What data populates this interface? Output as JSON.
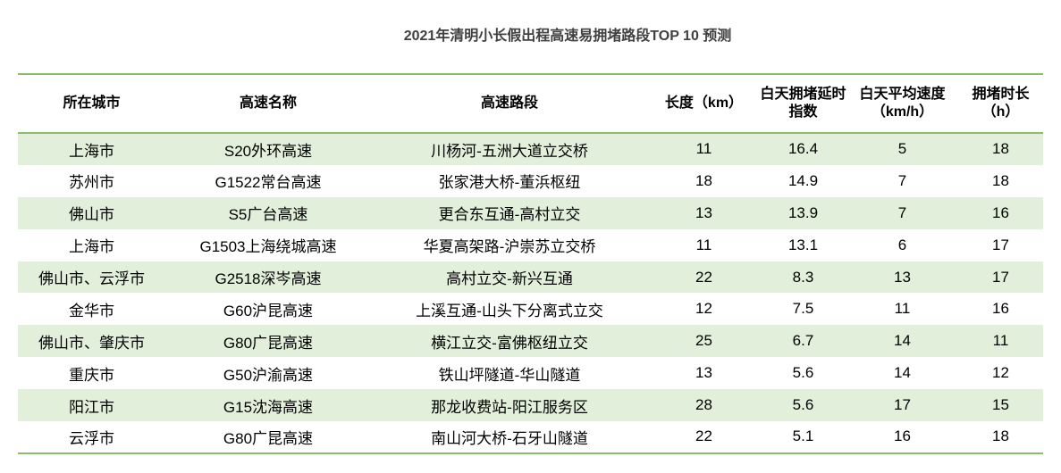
{
  "title": "2021年清明小长假出程高速易拥堵路段TOP 10 预测",
  "colors": {
    "accent_line": "#8cbd6c",
    "stripe": "#e2efda"
  },
  "table": {
    "headers": [
      "所在城市",
      "高速名称",
      "高速路段",
      "长度（km）",
      "白天拥堵延时指数",
      "白天平均速度（km/h）",
      "拥堵时长（h）"
    ],
    "rows": [
      [
        "上海市",
        "S20外环高速",
        "川杨河-五洲大道立交桥",
        "11",
        "16.4",
        "5",
        "18"
      ],
      [
        "苏州市",
        "G1522常台高速",
        "张家港大桥-董浜枢纽",
        "18",
        "14.9",
        "7",
        "18"
      ],
      [
        "佛山市",
        "S5广台高速",
        "更合东互通-高村立交",
        "13",
        "13.9",
        "7",
        "16"
      ],
      [
        "上海市",
        "G1503上海绕城高速",
        "华夏高架路-沪崇苏立交桥",
        "11",
        "13.1",
        "6",
        "17"
      ],
      [
        "佛山市、云浮市",
        "G2518深岑高速",
        "高村立交-新兴互通",
        "22",
        "8.3",
        "13",
        "17"
      ],
      [
        "金华市",
        "G60沪昆高速",
        "上溪互通-山头下分离式立交",
        "12",
        "7.5",
        "11",
        "16"
      ],
      [
        "佛山市、肇庆市",
        "G80广昆高速",
        "横江立交-富佛枢纽立交",
        "25",
        "6.7",
        "14",
        "11"
      ],
      [
        "重庆市",
        "G50沪渝高速",
        "铁山坪隧道-华山隧道",
        "13",
        "5.6",
        "14",
        "12"
      ],
      [
        "阳江市",
        "G15沈海高速",
        "那龙收费站-阳江服务区",
        "28",
        "5.6",
        "17",
        "15"
      ],
      [
        "云浮市",
        "G80广昆高速",
        "南山河大桥-石牙山隧道",
        "22",
        "5.1",
        "16",
        "18"
      ]
    ]
  }
}
